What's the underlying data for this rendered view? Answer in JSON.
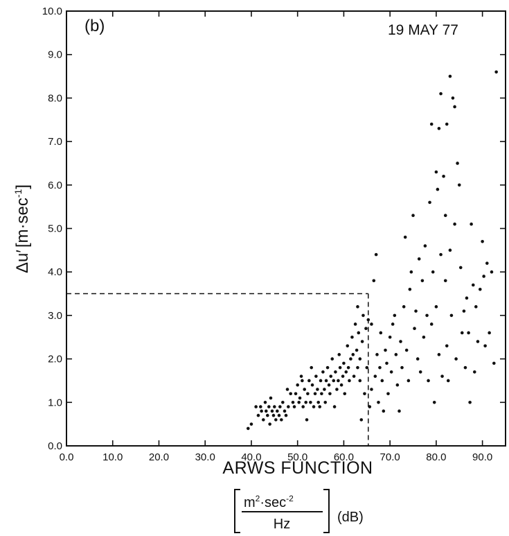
{
  "chart_data": {
    "type": "scatter",
    "panel_label": "(b)",
    "annotation": "19 MAY 77",
    "xlabel": "ARWS FUNCTION",
    "xunit": {
      "numerator_base": "m",
      "numerator_exp1": "2",
      "numerator_mid": "·sec",
      "numerator_exp2": "-2",
      "denominator": "Hz",
      "suffix": "(dB)"
    },
    "ylabel": {
      "prefix": "Δu′",
      "unit_base": "m·sec",
      "unit_exp": "-1"
    },
    "xlim": [
      0,
      95
    ],
    "ylim": [
      0,
      10
    ],
    "xticks": [
      "0.0",
      "10.0",
      "20.0",
      "30.0",
      "40.0",
      "50.0",
      "60.0",
      "70.0",
      "80.0",
      "90.0"
    ],
    "yticks": [
      "0.0",
      "1.0",
      "2.0",
      "3.0",
      "4.0",
      "5.0",
      "6.0",
      "7.0",
      "8.0",
      "9.0",
      "10.0"
    ],
    "threshold_lines": {
      "x": 65.3,
      "y": 3.5
    },
    "points": [
      [
        39.3,
        0.4
      ],
      [
        40.0,
        0.5
      ],
      [
        41.0,
        0.9
      ],
      [
        41.5,
        0.7
      ],
      [
        42.0,
        0.9
      ],
      [
        42.2,
        0.8
      ],
      [
        42.6,
        0.6
      ],
      [
        43.0,
        1.0
      ],
      [
        43.2,
        0.8
      ],
      [
        43.5,
        0.7
      ],
      [
        43.8,
        0.9
      ],
      [
        44.0,
        0.5
      ],
      [
        44.2,
        1.1
      ],
      [
        44.5,
        0.8
      ],
      [
        44.8,
        0.7
      ],
      [
        45.0,
        0.9
      ],
      [
        45.3,
        0.6
      ],
      [
        45.6,
        0.8
      ],
      [
        46.0,
        0.7
      ],
      [
        46.2,
        0.9
      ],
      [
        46.5,
        0.6
      ],
      [
        46.8,
        1.0
      ],
      [
        47.2,
        0.8
      ],
      [
        47.5,
        0.7
      ],
      [
        47.8,
        1.3
      ],
      [
        48.0,
        0.9
      ],
      [
        48.5,
        1.2
      ],
      [
        49.0,
        1.0
      ],
      [
        49.3,
        0.9
      ],
      [
        49.6,
        1.2
      ],
      [
        50.0,
        1.4
      ],
      [
        50.3,
        1.0
      ],
      [
        50.5,
        1.1
      ],
      [
        50.8,
        1.6
      ],
      [
        51.0,
        1.5
      ],
      [
        51.2,
        0.9
      ],
      [
        51.5,
        1.3
      ],
      [
        51.8,
        1.0
      ],
      [
        52.0,
        0.6
      ],
      [
        52.2,
        1.2
      ],
      [
        52.5,
        1.5
      ],
      [
        52.8,
        1.0
      ],
      [
        53.0,
        1.8
      ],
      [
        53.2,
        1.4
      ],
      [
        53.5,
        0.9
      ],
      [
        53.8,
        1.2
      ],
      [
        54.0,
        1.6
      ],
      [
        54.3,
        1.3
      ],
      [
        54.5,
        1.0
      ],
      [
        54.8,
        0.9
      ],
      [
        55.0,
        1.5
      ],
      [
        55.2,
        1.2
      ],
      [
        55.5,
        1.7
      ],
      [
        55.8,
        1.3
      ],
      [
        56.0,
        1.0
      ],
      [
        56.2,
        1.5
      ],
      [
        56.5,
        1.8
      ],
      [
        56.8,
        1.4
      ],
      [
        57.0,
        1.2
      ],
      [
        57.2,
        1.6
      ],
      [
        57.5,
        2.0
      ],
      [
        57.8,
        1.5
      ],
      [
        58.0,
        0.9
      ],
      [
        58.2,
        1.7
      ],
      [
        58.5,
        1.3
      ],
      [
        58.8,
        1.5
      ],
      [
        59.0,
        2.1
      ],
      [
        59.2,
        1.8
      ],
      [
        59.5,
        1.4
      ],
      [
        59.8,
        1.6
      ],
      [
        60.0,
        1.9
      ],
      [
        60.2,
        1.2
      ],
      [
        60.5,
        1.7
      ],
      [
        60.8,
        2.3
      ],
      [
        61.0,
        1.8
      ],
      [
        61.2,
        1.5
      ],
      [
        61.5,
        2.0
      ],
      [
        61.8,
        2.5
      ],
      [
        62.0,
        2.1
      ],
      [
        62.2,
        1.6
      ],
      [
        62.5,
        2.8
      ],
      [
        62.8,
        2.2
      ],
      [
        63.0,
        3.2
      ],
      [
        63.0,
        1.8
      ],
      [
        63.2,
        2.6
      ],
      [
        63.5,
        2.0
      ],
      [
        63.5,
        1.5
      ],
      [
        63.8,
        0.6
      ],
      [
        64.0,
        2.4
      ],
      [
        64.2,
        3.0
      ],
      [
        64.5,
        1.2
      ],
      [
        64.8,
        2.7
      ],
      [
        65.0,
        1.8
      ],
      [
        65.3,
        2.9
      ],
      [
        65.6,
        0.9
      ],
      [
        66.0,
        1.3
      ],
      [
        66.0,
        2.8
      ],
      [
        66.5,
        3.8
      ],
      [
        66.8,
        1.6
      ],
      [
        67.0,
        4.4
      ],
      [
        67.2,
        2.1
      ],
      [
        67.5,
        1.0
      ],
      [
        67.8,
        1.8
      ],
      [
        68.0,
        2.6
      ],
      [
        68.3,
        1.5
      ],
      [
        68.6,
        0.8
      ],
      [
        69.0,
        2.2
      ],
      [
        69.3,
        1.9
      ],
      [
        69.6,
        1.2
      ],
      [
        70.0,
        2.5
      ],
      [
        70.3,
        1.7
      ],
      [
        70.6,
        2.8
      ],
      [
        71.0,
        3.0
      ],
      [
        71.3,
        2.1
      ],
      [
        71.6,
        1.4
      ],
      [
        72.0,
        0.8
      ],
      [
        72.3,
        2.4
      ],
      [
        72.6,
        1.8
      ],
      [
        73.0,
        3.2
      ],
      [
        73.3,
        4.8
      ],
      [
        73.6,
        2.2
      ],
      [
        74.0,
        1.5
      ],
      [
        74.3,
        3.6
      ],
      [
        74.6,
        4.0
      ],
      [
        75.0,
        5.3
      ],
      [
        75.3,
        2.7
      ],
      [
        75.6,
        3.1
      ],
      [
        76.0,
        2.0
      ],
      [
        76.3,
        4.3
      ],
      [
        76.6,
        1.7
      ],
      [
        77.0,
        3.8
      ],
      [
        77.3,
        2.5
      ],
      [
        77.6,
        4.6
      ],
      [
        78.0,
        3.0
      ],
      [
        78.3,
        1.5
      ],
      [
        78.6,
        5.6
      ],
      [
        79.0,
        7.4
      ],
      [
        79.0,
        2.8
      ],
      [
        79.3,
        4.0
      ],
      [
        79.6,
        1.0
      ],
      [
        80.0,
        6.3
      ],
      [
        80.0,
        3.2
      ],
      [
        80.3,
        5.9
      ],
      [
        80.6,
        7.3
      ],
      [
        80.6,
        2.1
      ],
      [
        81.0,
        8.1
      ],
      [
        81.0,
        4.4
      ],
      [
        81.3,
        1.6
      ],
      [
        81.6,
        6.2
      ],
      [
        82.0,
        5.3
      ],
      [
        82.0,
        3.8
      ],
      [
        82.3,
        7.4
      ],
      [
        82.3,
        2.3
      ],
      [
        82.6,
        1.5
      ],
      [
        83.0,
        8.5
      ],
      [
        83.0,
        4.5
      ],
      [
        83.3,
        3.0
      ],
      [
        83.6,
        8.0
      ],
      [
        84.0,
        7.8
      ],
      [
        84.0,
        5.1
      ],
      [
        84.3,
        2.0
      ],
      [
        84.6,
        6.5
      ],
      [
        85.0,
        6.0
      ],
      [
        85.3,
        4.1
      ],
      [
        85.6,
        2.6
      ],
      [
        86.0,
        3.1
      ],
      [
        86.3,
        1.8
      ],
      [
        86.6,
        3.4
      ],
      [
        87.0,
        2.6
      ],
      [
        87.3,
        1.0
      ],
      [
        87.6,
        5.1
      ],
      [
        88.0,
        3.7
      ],
      [
        88.3,
        1.7
      ],
      [
        88.6,
        3.2
      ],
      [
        89.0,
        2.4
      ],
      [
        89.5,
        3.6
      ],
      [
        90.0,
        4.7
      ],
      [
        90.3,
        3.9
      ],
      [
        90.6,
        2.3
      ],
      [
        91.0,
        4.2
      ],
      [
        91.5,
        2.6
      ],
      [
        92.0,
        4.0
      ],
      [
        92.5,
        1.9
      ],
      [
        93.0,
        8.6
      ]
    ]
  }
}
